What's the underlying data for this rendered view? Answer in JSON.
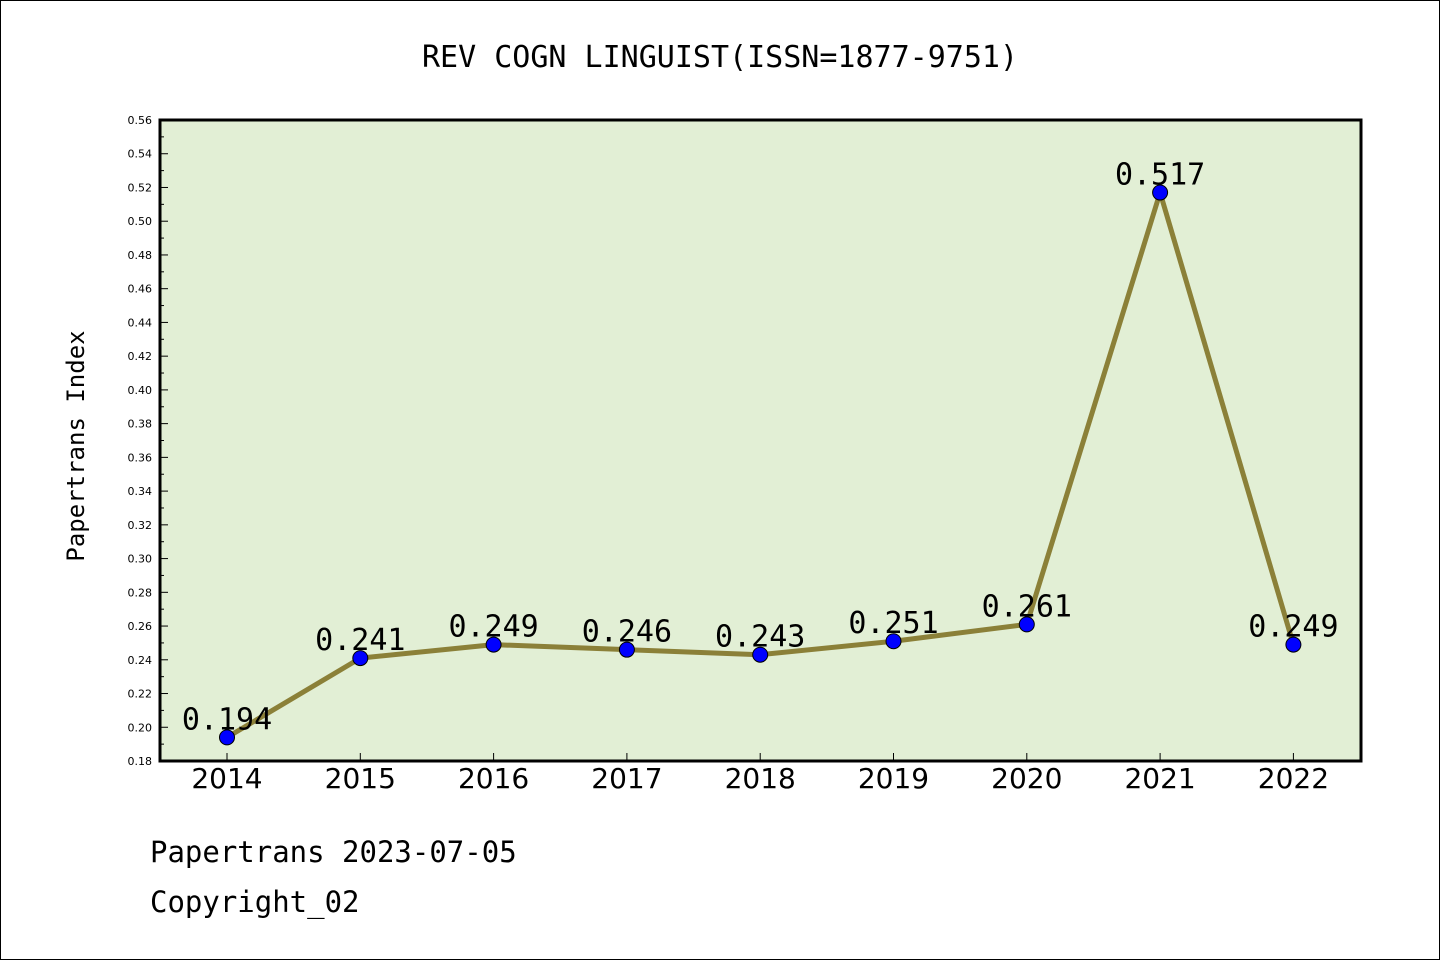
{
  "chart_data": {
    "type": "line",
    "title": "REV COGN LINGUIST(ISSN=1877-9751)",
    "ylabel": "Papertrans Index",
    "xlabel": "",
    "categories": [
      "2014",
      "2015",
      "2016",
      "2017",
      "2018",
      "2019",
      "2020",
      "2021",
      "2022"
    ],
    "values": [
      0.194,
      0.241,
      0.249,
      0.246,
      0.243,
      0.251,
      0.261,
      0.517,
      0.249
    ],
    "value_labels": [
      "0.194",
      "0.241",
      "0.249",
      "0.246",
      "0.243",
      "0.251",
      "0.261",
      "0.517",
      "0.249"
    ],
    "ylim": [
      0.18,
      0.56
    ],
    "yticks": [
      "0.18",
      "0.20",
      "0.22",
      "0.24",
      "0.26",
      "0.28",
      "0.30",
      "0.32",
      "0.34",
      "0.36",
      "0.38",
      "0.40",
      "0.42",
      "0.44",
      "0.46",
      "0.48",
      "0.50",
      "0.52",
      "0.54",
      "0.56"
    ],
    "grid": false,
    "colors": {
      "plot_background": "#e2efd5",
      "line": "#8b8038",
      "marker": "#0000ff"
    }
  },
  "footer": {
    "line1": "Papertrans 2023-07-05",
    "line2": "Copyright_02"
  }
}
